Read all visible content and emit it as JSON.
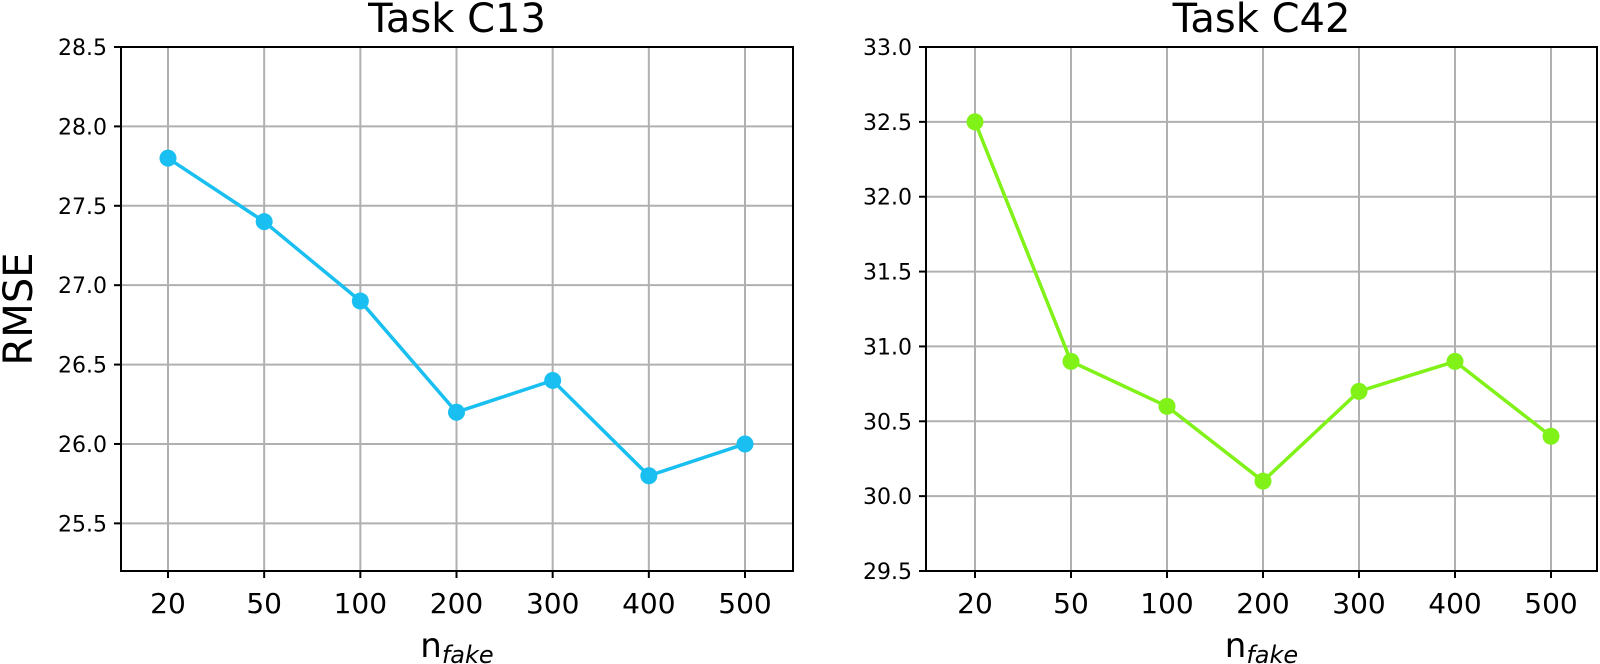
{
  "chart_data": [
    {
      "type": "line",
      "title": "Task C13",
      "ylabel": "RMSE",
      "xlabel": {
        "main": "n",
        "sub": "fake"
      },
      "categories": [
        "20",
        "50",
        "100",
        "200",
        "300",
        "400",
        "500"
      ],
      "ylim": [
        25.2,
        28.5
      ],
      "yticks": [
        "25.5",
        "26.0",
        "26.5",
        "27.0",
        "27.5",
        "28.0",
        "28.5"
      ],
      "series": [
        {
          "values": [
            27.8,
            27.4,
            26.9,
            26.2,
            26.4,
            25.8,
            26.0
          ],
          "color": "#18bff0"
        }
      ],
      "grid": true
    },
    {
      "type": "line",
      "title": "Task C42",
      "ylabel": "",
      "xlabel": {
        "main": "n",
        "sub": "fake"
      },
      "categories": [
        "20",
        "50",
        "100",
        "200",
        "300",
        "400",
        "500"
      ],
      "ylim": [
        29.5,
        33.0
      ],
      "yticks": [
        "29.5",
        "30.0",
        "30.5",
        "31.0",
        "31.5",
        "32.0",
        "32.5",
        "33.0"
      ],
      "series": [
        {
          "values": [
            32.5,
            30.9,
            30.6,
            30.1,
            30.7,
            30.9,
            30.4
          ],
          "color": "#80f218"
        }
      ],
      "grid": true
    }
  ]
}
